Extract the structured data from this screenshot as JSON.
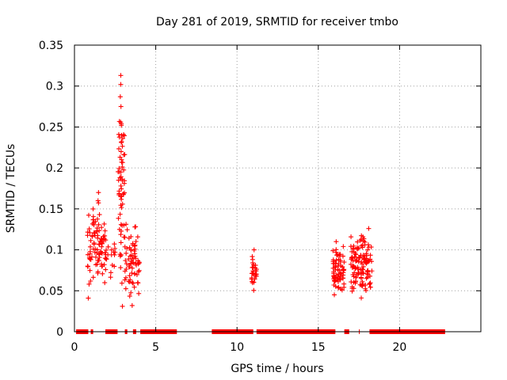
{
  "chart_data": {
    "type": "scatter",
    "title": "Day 281 of 2019, SRMTID for receiver tmbo",
    "xlabel": "GPS time / hours",
    "ylabel": "SRMTID / TECUs",
    "xlim": [
      0,
      25
    ],
    "ylim": [
      0,
      0.35
    ],
    "x_ticks": [
      0,
      5,
      10,
      15,
      20
    ],
    "x_tick_labels": [
      "0",
      "5",
      "10",
      "15",
      "20"
    ],
    "y_ticks": [
      0,
      0.05,
      0.1,
      0.15,
      0.2,
      0.25,
      0.3,
      0.35
    ],
    "y_tick_labels": [
      "0",
      "0.05",
      "0.1",
      "0.15",
      "0.2",
      "0.25",
      "0.3",
      "0.35"
    ],
    "grid": true,
    "marker": "+",
    "color": "#ff0000",
    "zero_segments": [
      [
        0.1,
        0.85
      ],
      [
        1.0,
        1.15
      ],
      [
        1.9,
        2.65
      ],
      [
        3.1,
        3.25
      ],
      [
        3.6,
        3.8
      ],
      [
        4.05,
        6.3
      ],
      [
        8.45,
        11.0
      ],
      [
        11.2,
        16.05
      ],
      [
        16.6,
        16.9
      ],
      [
        17.5,
        17.55
      ],
      [
        18.15,
        22.8
      ]
    ],
    "clusters": [
      {
        "name": "cluster-1",
        "x_range": [
          0.8,
          1.9
        ],
        "y_range": [
          0.04,
          0.17
        ],
        "n": 90
      },
      {
        "name": "cluster-2",
        "x_range": [
          1.9,
          2.5
        ],
        "y_range": [
          0.055,
          0.13
        ],
        "n": 20
      },
      {
        "name": "cluster-3",
        "x_range": [
          2.65,
          3.1
        ],
        "y_range": [
          0.03,
          0.313
        ],
        "n": 55
      },
      {
        "name": "cluster-4",
        "x_range": [
          3.1,
          4.0
        ],
        "y_range": [
          0.032,
          0.145
        ],
        "n": 70
      },
      {
        "name": "cluster-5",
        "x_range": [
          10.9,
          11.2
        ],
        "y_range": [
          0.045,
          0.1
        ],
        "n": 30
      },
      {
        "name": "cluster-6",
        "x_range": [
          15.9,
          16.6
        ],
        "y_range": [
          0.035,
          0.11
        ],
        "n": 70
      },
      {
        "name": "cluster-7",
        "x_range": [
          17.0,
          18.3
        ],
        "y_range": [
          0.03,
          0.126
        ],
        "n": 130
      }
    ],
    "notable_points": [
      {
        "x": 2.85,
        "y": 0.313
      },
      {
        "x": 2.85,
        "y": 0.302
      },
      {
        "x": 2.82,
        "y": 0.287
      },
      {
        "x": 2.86,
        "y": 0.275
      },
      {
        "x": 2.84,
        "y": 0.256
      },
      {
        "x": 2.88,
        "y": 0.254
      },
      {
        "x": 2.9,
        "y": 0.232
      },
      {
        "x": 2.87,
        "y": 0.22
      },
      {
        "x": 2.9,
        "y": 0.21
      },
      {
        "x": 2.85,
        "y": 0.195
      },
      {
        "x": 2.8,
        "y": 0.188
      },
      {
        "x": 2.9,
        "y": 0.165
      },
      {
        "x": 1.48,
        "y": 0.17
      },
      {
        "x": 1.45,
        "y": 0.16
      },
      {
        "x": 0.85,
        "y": 0.041
      },
      {
        "x": 11.05,
        "y": 0.1
      },
      {
        "x": 18.1,
        "y": 0.126
      },
      {
        "x": 16.1,
        "y": 0.11
      },
      {
        "x": 2.95,
        "y": 0.031
      },
      {
        "x": 3.55,
        "y": 0.032
      }
    ]
  }
}
